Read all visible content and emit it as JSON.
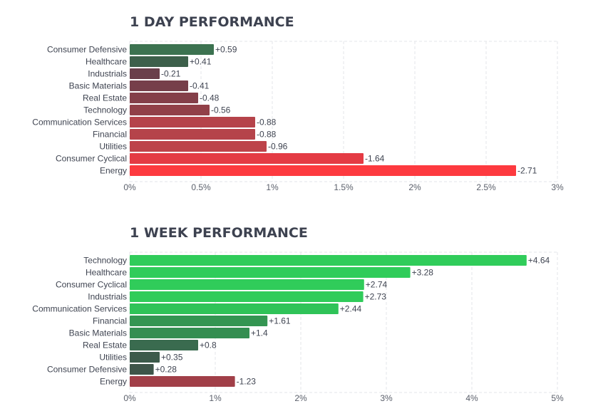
{
  "chart_data": [
    {
      "type": "bar",
      "orientation": "horizontal",
      "title": "1 DAY PERFORMANCE",
      "categories": [
        "Consumer Defensive",
        "Healthcare",
        "Industrials",
        "Basic Materials",
        "Real Estate",
        "Technology",
        "Communication Services",
        "Financial",
        "Utilities",
        "Consumer Cyclical",
        "Energy"
      ],
      "values": [
        0.59,
        0.41,
        -0.21,
        -0.41,
        -0.48,
        -0.56,
        -0.88,
        -0.88,
        -0.96,
        -1.64,
        -2.71
      ],
      "value_labels": [
        "+0.59",
        "+0.41",
        "-0.21",
        "-0.41",
        "-0.48",
        "-0.56",
        "-0.88",
        "-0.88",
        "-0.96",
        "-1.64",
        "-2.71"
      ],
      "colors": [
        "#3c7250",
        "#3d604b",
        "#6a3f4b",
        "#763f4a",
        "#843f49",
        "#914048",
        "#b5434a",
        "#b5434a",
        "#bd434a",
        "#e43b44",
        "#fd3a3f"
      ],
      "xticks": [
        "0%",
        "0.5%",
        "1%",
        "1.5%",
        "2%",
        "2.5%",
        "3%"
      ],
      "xlim": [
        0,
        3
      ],
      "grid": true
    },
    {
      "type": "bar",
      "orientation": "horizontal",
      "title": "1 WEEK PERFORMANCE",
      "categories": [
        "Technology",
        "Healthcare",
        "Consumer Cyclical",
        "Industrials",
        "Communication Services",
        "Financial",
        "Basic Materials",
        "Real Estate",
        "Utilities",
        "Consumer Defensive",
        "Energy"
      ],
      "values": [
        4.64,
        3.28,
        2.74,
        2.73,
        2.44,
        1.61,
        1.4,
        0.8,
        0.35,
        0.28,
        -1.23
      ],
      "value_labels": [
        "+4.64",
        "+3.28",
        "+2.74",
        "+2.73",
        "+2.44",
        "+1.61",
        "+1.4",
        "+0.8",
        "+0.35",
        "+0.28",
        "-1.23"
      ],
      "colors": [
        "#30cc5a",
        "#30cc5a",
        "#30cc5a",
        "#30cc5a",
        "#2fc358",
        "#349552",
        "#348e51",
        "#3a6b4f",
        "#3c5a4a",
        "#3e5549",
        "#a13f48"
      ],
      "xticks": [
        "0%",
        "1%",
        "2%",
        "3%",
        "4%",
        "5%"
      ],
      "xlim": [
        0,
        5
      ],
      "grid": true
    }
  ]
}
